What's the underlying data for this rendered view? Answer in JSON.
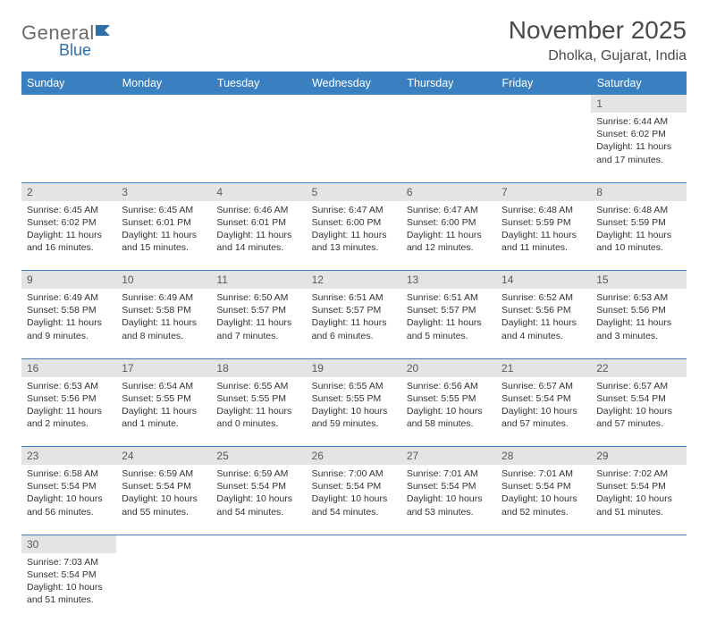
{
  "brand": {
    "part1": "General",
    "part2": "Blue"
  },
  "title": "November 2025",
  "location": "Dholka, Gujarat, India",
  "colors": {
    "header_bg": "#3a80c1",
    "header_fg": "#ffffff",
    "daynum_bg": "#e4e4e4",
    "rule": "#3a80c1",
    "text": "#333333",
    "title": "#4a4a4a"
  },
  "fonts": {
    "title_size": 28,
    "location_size": 16,
    "dayhdr_size": 12.5,
    "body_size": 10.5
  },
  "day_headers": [
    "Sunday",
    "Monday",
    "Tuesday",
    "Wednesday",
    "Thursday",
    "Friday",
    "Saturday"
  ],
  "weeks": [
    [
      null,
      null,
      null,
      null,
      null,
      null,
      {
        "n": "1",
        "sr": "Sunrise: 6:44 AM",
        "ss": "Sunset: 6:02 PM",
        "dl": "Daylight: 11 hours and 17 minutes."
      }
    ],
    [
      {
        "n": "2",
        "sr": "Sunrise: 6:45 AM",
        "ss": "Sunset: 6:02 PM",
        "dl": "Daylight: 11 hours and 16 minutes."
      },
      {
        "n": "3",
        "sr": "Sunrise: 6:45 AM",
        "ss": "Sunset: 6:01 PM",
        "dl": "Daylight: 11 hours and 15 minutes."
      },
      {
        "n": "4",
        "sr": "Sunrise: 6:46 AM",
        "ss": "Sunset: 6:01 PM",
        "dl": "Daylight: 11 hours and 14 minutes."
      },
      {
        "n": "5",
        "sr": "Sunrise: 6:47 AM",
        "ss": "Sunset: 6:00 PM",
        "dl": "Daylight: 11 hours and 13 minutes."
      },
      {
        "n": "6",
        "sr": "Sunrise: 6:47 AM",
        "ss": "Sunset: 6:00 PM",
        "dl": "Daylight: 11 hours and 12 minutes."
      },
      {
        "n": "7",
        "sr": "Sunrise: 6:48 AM",
        "ss": "Sunset: 5:59 PM",
        "dl": "Daylight: 11 hours and 11 minutes."
      },
      {
        "n": "8",
        "sr": "Sunrise: 6:48 AM",
        "ss": "Sunset: 5:59 PM",
        "dl": "Daylight: 11 hours and 10 minutes."
      }
    ],
    [
      {
        "n": "9",
        "sr": "Sunrise: 6:49 AM",
        "ss": "Sunset: 5:58 PM",
        "dl": "Daylight: 11 hours and 9 minutes."
      },
      {
        "n": "10",
        "sr": "Sunrise: 6:49 AM",
        "ss": "Sunset: 5:58 PM",
        "dl": "Daylight: 11 hours and 8 minutes."
      },
      {
        "n": "11",
        "sr": "Sunrise: 6:50 AM",
        "ss": "Sunset: 5:57 PM",
        "dl": "Daylight: 11 hours and 7 minutes."
      },
      {
        "n": "12",
        "sr": "Sunrise: 6:51 AM",
        "ss": "Sunset: 5:57 PM",
        "dl": "Daylight: 11 hours and 6 minutes."
      },
      {
        "n": "13",
        "sr": "Sunrise: 6:51 AM",
        "ss": "Sunset: 5:57 PM",
        "dl": "Daylight: 11 hours and 5 minutes."
      },
      {
        "n": "14",
        "sr": "Sunrise: 6:52 AM",
        "ss": "Sunset: 5:56 PM",
        "dl": "Daylight: 11 hours and 4 minutes."
      },
      {
        "n": "15",
        "sr": "Sunrise: 6:53 AM",
        "ss": "Sunset: 5:56 PM",
        "dl": "Daylight: 11 hours and 3 minutes."
      }
    ],
    [
      {
        "n": "16",
        "sr": "Sunrise: 6:53 AM",
        "ss": "Sunset: 5:56 PM",
        "dl": "Daylight: 11 hours and 2 minutes."
      },
      {
        "n": "17",
        "sr": "Sunrise: 6:54 AM",
        "ss": "Sunset: 5:55 PM",
        "dl": "Daylight: 11 hours and 1 minute."
      },
      {
        "n": "18",
        "sr": "Sunrise: 6:55 AM",
        "ss": "Sunset: 5:55 PM",
        "dl": "Daylight: 11 hours and 0 minutes."
      },
      {
        "n": "19",
        "sr": "Sunrise: 6:55 AM",
        "ss": "Sunset: 5:55 PM",
        "dl": "Daylight: 10 hours and 59 minutes."
      },
      {
        "n": "20",
        "sr": "Sunrise: 6:56 AM",
        "ss": "Sunset: 5:55 PM",
        "dl": "Daylight: 10 hours and 58 minutes."
      },
      {
        "n": "21",
        "sr": "Sunrise: 6:57 AM",
        "ss": "Sunset: 5:54 PM",
        "dl": "Daylight: 10 hours and 57 minutes."
      },
      {
        "n": "22",
        "sr": "Sunrise: 6:57 AM",
        "ss": "Sunset: 5:54 PM",
        "dl": "Daylight: 10 hours and 57 minutes."
      }
    ],
    [
      {
        "n": "23",
        "sr": "Sunrise: 6:58 AM",
        "ss": "Sunset: 5:54 PM",
        "dl": "Daylight: 10 hours and 56 minutes."
      },
      {
        "n": "24",
        "sr": "Sunrise: 6:59 AM",
        "ss": "Sunset: 5:54 PM",
        "dl": "Daylight: 10 hours and 55 minutes."
      },
      {
        "n": "25",
        "sr": "Sunrise: 6:59 AM",
        "ss": "Sunset: 5:54 PM",
        "dl": "Daylight: 10 hours and 54 minutes."
      },
      {
        "n": "26",
        "sr": "Sunrise: 7:00 AM",
        "ss": "Sunset: 5:54 PM",
        "dl": "Daylight: 10 hours and 54 minutes."
      },
      {
        "n": "27",
        "sr": "Sunrise: 7:01 AM",
        "ss": "Sunset: 5:54 PM",
        "dl": "Daylight: 10 hours and 53 minutes."
      },
      {
        "n": "28",
        "sr": "Sunrise: 7:01 AM",
        "ss": "Sunset: 5:54 PM",
        "dl": "Daylight: 10 hours and 52 minutes."
      },
      {
        "n": "29",
        "sr": "Sunrise: 7:02 AM",
        "ss": "Sunset: 5:54 PM",
        "dl": "Daylight: 10 hours and 51 minutes."
      }
    ],
    [
      {
        "n": "30",
        "sr": "Sunrise: 7:03 AM",
        "ss": "Sunset: 5:54 PM",
        "dl": "Daylight: 10 hours and 51 minutes."
      },
      null,
      null,
      null,
      null,
      null,
      null
    ]
  ]
}
